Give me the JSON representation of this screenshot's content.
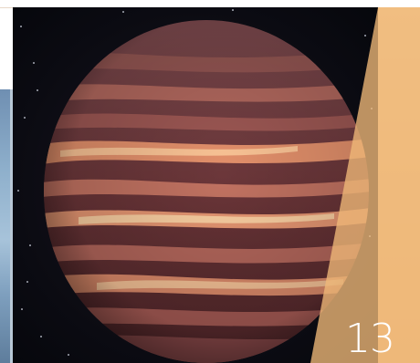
{
  "page": {
    "page_number": "13"
  },
  "image": {
    "subject": "planet-illustration-icon"
  },
  "colors": {
    "accent_overlay": "#f0b878",
    "background_space": "#0b0b12",
    "planet_base": "#6e3a3c",
    "planet_band_light": "#f5a377",
    "page_number_color": "#ffffff"
  }
}
